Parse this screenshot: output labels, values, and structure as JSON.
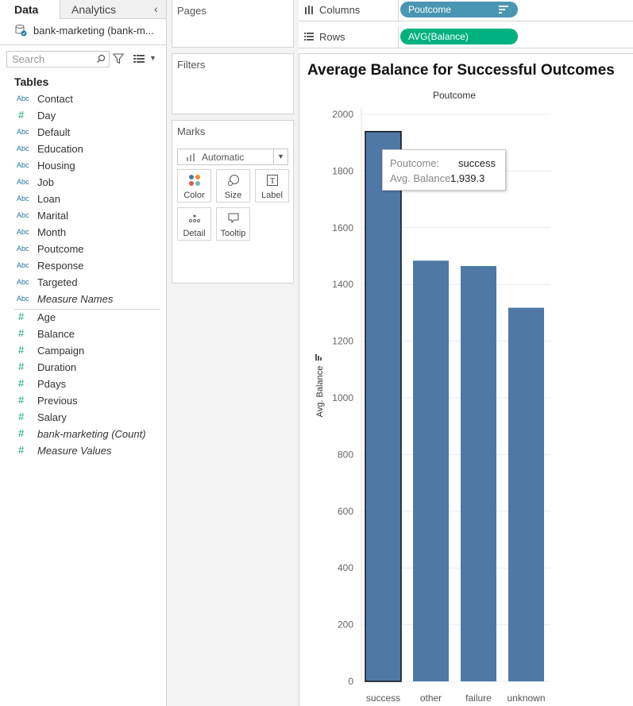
{
  "left_pane": {
    "tabs": [
      {
        "label": "Data"
      },
      {
        "label": "Analytics"
      }
    ],
    "datasource": "bank-marketing (bank-m...",
    "search_placeholder": "Search",
    "tables_heading": "Tables",
    "dimensions": [
      {
        "type": "Abc",
        "label": "Contact"
      },
      {
        "type": "#",
        "label": "Day"
      },
      {
        "type": "Abc",
        "label": "Default"
      },
      {
        "type": "Abc",
        "label": "Education"
      },
      {
        "type": "Abc",
        "label": "Housing"
      },
      {
        "type": "Abc",
        "label": "Job"
      },
      {
        "type": "Abc",
        "label": "Loan"
      },
      {
        "type": "Abc",
        "label": "Marital"
      },
      {
        "type": "Abc",
        "label": "Month"
      },
      {
        "type": "Abc",
        "label": "Poutcome"
      },
      {
        "type": "Abc",
        "label": "Response"
      },
      {
        "type": "Abc",
        "label": "Targeted"
      },
      {
        "type": "Abc",
        "label": "Measure Names"
      }
    ],
    "measures": [
      {
        "type": "#",
        "label": "Age"
      },
      {
        "type": "#",
        "label": "Balance"
      },
      {
        "type": "#",
        "label": "Campaign"
      },
      {
        "type": "#",
        "label": "Duration"
      },
      {
        "type": "#",
        "label": "Pdays"
      },
      {
        "type": "#",
        "label": "Previous"
      },
      {
        "type": "#",
        "label": "Salary"
      },
      {
        "type": "#",
        "label": "bank-marketing (Count)"
      },
      {
        "type": "#",
        "label": "Measure Values"
      }
    ]
  },
  "cards": {
    "pages": "Pages",
    "filters": "Filters",
    "marks": "Marks",
    "mark_type": "Automatic",
    "mark_buttons": [
      {
        "label": "Color",
        "icon": "color-icon"
      },
      {
        "label": "Size",
        "icon": "size-icon"
      },
      {
        "label": "Label",
        "icon": "label-icon"
      },
      {
        "label": "Detail",
        "icon": "detail-icon"
      },
      {
        "label": "Tooltip",
        "icon": "tooltip-icon"
      }
    ]
  },
  "shelves": {
    "columns_label": "Columns",
    "columns_pill": "Poutcome",
    "rows_label": "Rows",
    "rows_pill": "AVG(Balance)"
  },
  "chart_data": {
    "type": "bar",
    "title": "Average Balance for Successful Outcomes",
    "header": "Poutcome",
    "ylabel": "Avg. Balance",
    "categories": [
      "success",
      "other",
      "failure",
      "unknown"
    ],
    "values": [
      1939.3,
      1484,
      1465,
      1318
    ],
    "ylim": [
      0,
      2000
    ],
    "yticks": [
      0,
      200,
      400,
      600,
      800,
      1000,
      1200,
      1400,
      1600,
      1800,
      2000
    ],
    "bar_color": "#4e79a7",
    "grid": true,
    "highlighted": "success"
  },
  "tooltip": {
    "key1": "Poutcome:",
    "val1": "success",
    "key2": "Avg. Balance:",
    "val2": "1,939.3"
  }
}
